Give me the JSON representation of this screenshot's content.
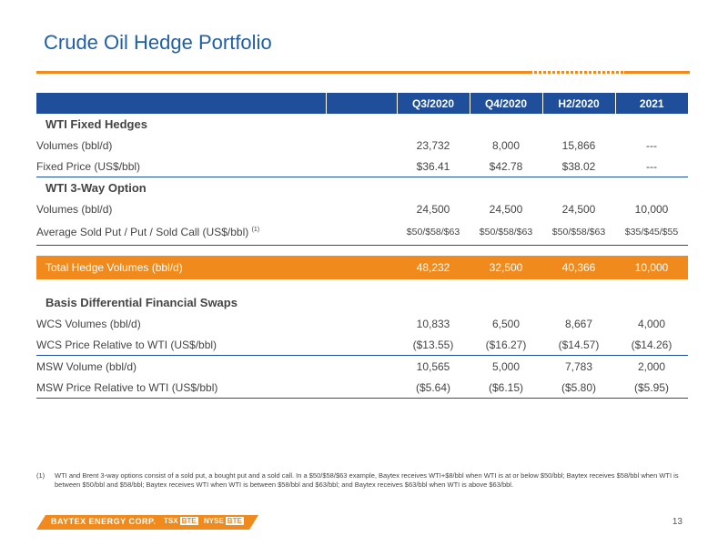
{
  "title": "Crude Oil Hedge Portfolio",
  "table": {
    "headers": [
      "Q3/2020",
      "Q4/2020",
      "H2/2020",
      "2021"
    ],
    "sections": {
      "wti_fixed": "WTI Fixed Hedges",
      "wti_3way": "WTI 3-Way Option",
      "basis": "Basis Differential Financial Swaps"
    },
    "rows": {
      "fixed_volumes": {
        "label": "Volumes (bbl/d)",
        "values": [
          "23,732",
          "8,000",
          "15,866",
          "---"
        ]
      },
      "fixed_price": {
        "label": "Fixed Price (US$/bbl)",
        "values": [
          "$36.41",
          "$42.78",
          "$38.02",
          "---"
        ]
      },
      "threeway_volumes": {
        "label": "Volumes (bbl/d)",
        "values": [
          "24,500",
          "24,500",
          "24,500",
          "10,000"
        ]
      },
      "threeway_price": {
        "label": "Average Sold Put / Put / Sold Call (US$/bbl)",
        "note": "(1)",
        "values": [
          "$50/$58/$63",
          "$50/$58/$63",
          "$50/$58/$63",
          "$35/$45/$55"
        ]
      },
      "total": {
        "label": "Total Hedge Volumes (bbl/d)",
        "values": [
          "48,232",
          "32,500",
          "40,366",
          "10,000"
        ]
      },
      "wcs_volumes": {
        "label": "WCS Volumes (bbl/d)",
        "values": [
          "10,833",
          "6,500",
          "8,667",
          "4,000"
        ]
      },
      "wcs_price": {
        "label": "WCS Price Relative to WTI (US$/bbl)",
        "values": [
          "($13.55)",
          "($16.27)",
          "($14.57)",
          "($14.26)"
        ]
      },
      "msw_volume": {
        "label": "MSW Volume (bbl/d)",
        "values": [
          "10,565",
          "5,000",
          "7,783",
          "2,000"
        ]
      },
      "msw_price": {
        "label": "MSW Price Relative to WTI (US$/bbl)",
        "values": [
          "($5.64)",
          "($6.15)",
          "($5.80)",
          "($5.95)"
        ]
      }
    }
  },
  "footnote": {
    "mark": "(1)",
    "text": "WTI and Brent 3-way options consist of a sold put, a bought put and a sold call. In a $50/$58/$63 example, Baytex receives WTI+$8/bbl when WTI is at or below $50/bbl; Baytex receives $58/bbl when WTI is between $50/bbl and $58/bbl; Baytex receives WTI when WTI is between $58/bbl and $63/bbl; and Baytex receives $63/bbl when WTI is above $63/bbl."
  },
  "footer": {
    "brand": "BAYTEX ENERGY CORP.",
    "tsx_label": "TSX",
    "tsx_symbol": "BTE",
    "separator": "|",
    "nyse_label": "NYSE",
    "nyse_symbol": "BTE",
    "page_number": "13"
  },
  "colors": {
    "accent_orange": "#f08a1d",
    "header_blue": "#1f4e9a",
    "title_blue": "#1f5ea8"
  }
}
